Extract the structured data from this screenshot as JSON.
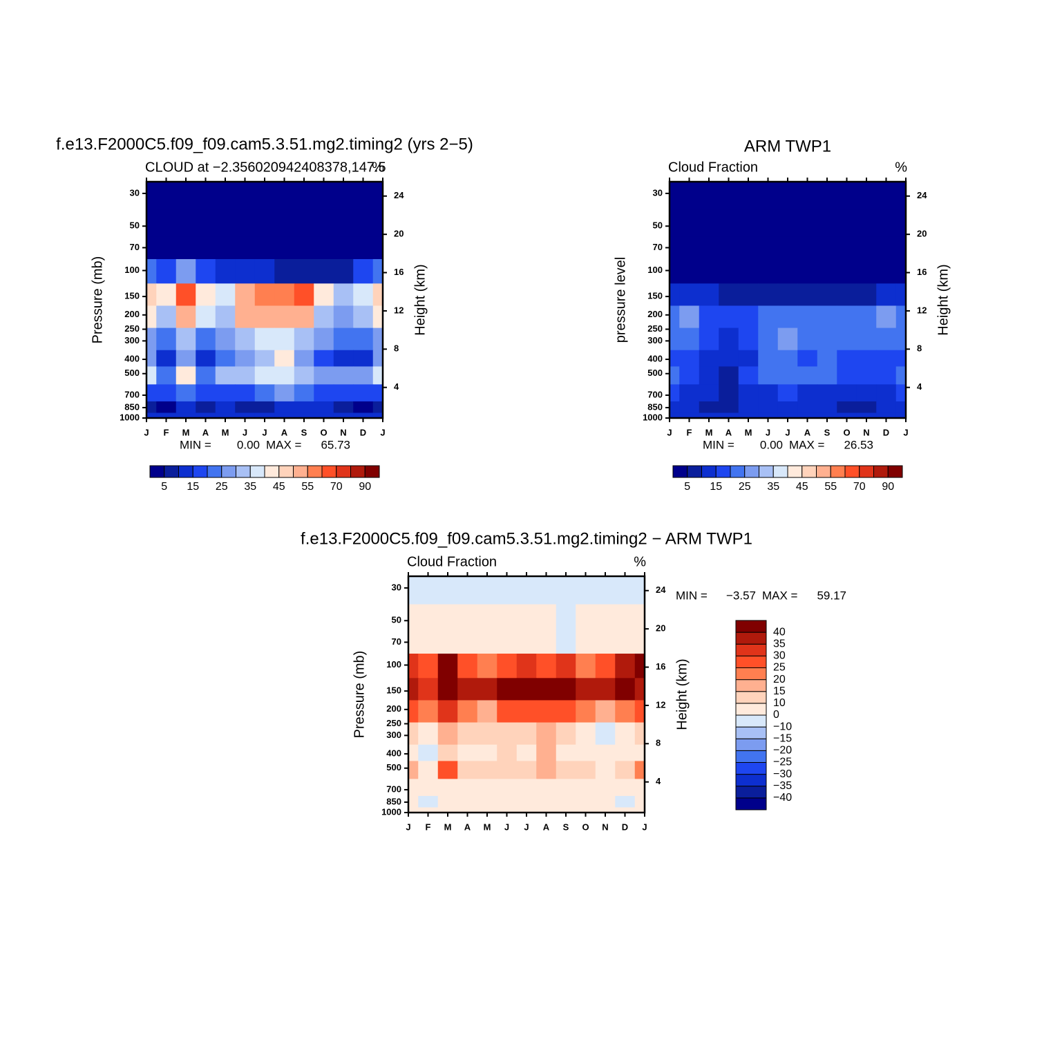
{
  "chart_data": [
    {
      "type": "contour",
      "title": "f.e13.F2000C5.f09_f09.cam5.3.51.mg2.timing2 (yrs 2−5)",
      "left_string": "CLOUD at −2.356020942408378,147.5",
      "right_string": "%",
      "ylabel": "Pressure (mb)",
      "y2label": "Height (km)",
      "categories": [
        "J",
        "F",
        "M",
        "A",
        "M",
        "J",
        "J",
        "A",
        "S",
        "O",
        "N",
        "D",
        "J"
      ],
      "y": [
        30,
        50,
        70,
        100,
        150,
        200,
        300,
        400,
        500,
        700,
        850,
        1000
      ],
      "z": [
        [
          0,
          0,
          0,
          0,
          0,
          0,
          0,
          0,
          0,
          0,
          0,
          0,
          0
        ],
        [
          0,
          0,
          0,
          0,
          0,
          0,
          0,
          0,
          0,
          0,
          0,
          0,
          0
        ],
        [
          2,
          2,
          3,
          2,
          1,
          1,
          1,
          1,
          1,
          1,
          1,
          2,
          2
        ],
        [
          22,
          18,
          28,
          15,
          12,
          12,
          10,
          8,
          6,
          6,
          8,
          15,
          22
        ],
        [
          45,
          40,
          65,
          40,
          35,
          50,
          58,
          55,
          60,
          40,
          32,
          38,
          45
        ],
        [
          40,
          33,
          50,
          35,
          30,
          50,
          52,
          52,
          50,
          30,
          28,
          33,
          40
        ],
        [
          28,
          22,
          32,
          22,
          26,
          32,
          35,
          35,
          32,
          25,
          20,
          22,
          28
        ],
        [
          25,
          10,
          28,
          10,
          22,
          25,
          30,
          40,
          28,
          18,
          12,
          14,
          25
        ],
        [
          38,
          20,
          42,
          22,
          30,
          32,
          35,
          38,
          32,
          28,
          25,
          28,
          38
        ],
        [
          18,
          15,
          20,
          18,
          15,
          18,
          22,
          25,
          22,
          18,
          15,
          15,
          18
        ],
        [
          8,
          4,
          10,
          8,
          10,
          8,
          8,
          10,
          10,
          10,
          8,
          4,
          8
        ],
        [
          10,
          10,
          10,
          10,
          10,
          10,
          10,
          10,
          10,
          10,
          10,
          10,
          10
        ]
      ],
      "ylim": [
        1000,
        25
      ],
      "log_y": true,
      "yticks": [
        30,
        50,
        70,
        100,
        150,
        200,
        250,
        300,
        400,
        500,
        700,
        850,
        1000
      ],
      "y2lim": [
        0.8,
        25.5
      ],
      "y2ticks": [
        4,
        8,
        12,
        16,
        20,
        24
      ],
      "levels": [
        5,
        10,
        15,
        20,
        25,
        30,
        35,
        40,
        45,
        50,
        55,
        60,
        70,
        80,
        90
      ],
      "colorbar_ticks": [
        5,
        15,
        25,
        35,
        45,
        55,
        70,
        90
      ],
      "colorbar": "horizontal",
      "colors": [
        "#00008b",
        "#0a1e9b",
        "#0d2fcf",
        "#1e46f0",
        "#4274f0",
        "#7c9cf0",
        "#a8c0f5",
        "#d8e8fa",
        "#ffeadc",
        "#ffd3bb",
        "#ffb090",
        "#ff7f50",
        "#ff5028",
        "#e0341a",
        "#b01a0c",
        "#800000"
      ],
      "min_label": "MIN =",
      "min": {
        "value": 0,
        "label": "0.00"
      },
      "max_label": "MAX =",
      "max": 65.73
    },
    {
      "type": "contour",
      "title": "ARM TWP1",
      "left_string": "Cloud Fraction",
      "right_string": "%",
      "ylabel": "pressure level",
      "y2label": "Height (km)",
      "categories": [
        "J",
        "F",
        "M",
        "A",
        "M",
        "J",
        "J",
        "A",
        "S",
        "O",
        "N",
        "D",
        "J"
      ],
      "y": [
        30,
        50,
        70,
        100,
        150,
        200,
        300,
        400,
        500,
        700,
        850,
        1000
      ],
      "z": [
        [
          0,
          0,
          0,
          0,
          0,
          0,
          0,
          0,
          0,
          0,
          0,
          0,
          0
        ],
        [
          0,
          0,
          0,
          0,
          0,
          0,
          0,
          0,
          0,
          0,
          0,
          0,
          0
        ],
        [
          0,
          0,
          0,
          0,
          0,
          0,
          0,
          0,
          0,
          0,
          0,
          0,
          0
        ],
        [
          4,
          3,
          3,
          2,
          2,
          2,
          2,
          2,
          2,
          2,
          2,
          3,
          4
        ],
        [
          12,
          10,
          10,
          8,
          8,
          8,
          8,
          8,
          9,
          9,
          9,
          10,
          12
        ],
        [
          22,
          25,
          18,
          15,
          15,
          20,
          24,
          22,
          20,
          20,
          22,
          25,
          22
        ],
        [
          20,
          22,
          18,
          14,
          16,
          22,
          26,
          20,
          22,
          20,
          22,
          24,
          20
        ],
        [
          18,
          16,
          14,
          10,
          14,
          20,
          22,
          18,
          20,
          16,
          18,
          15,
          18
        ],
        [
          20,
          18,
          14,
          8,
          15,
          20,
          22,
          20,
          20,
          18,
          18,
          18,
          20
        ],
        [
          15,
          12,
          10,
          6,
          12,
          14,
          15,
          14,
          12,
          10,
          10,
          12,
          15
        ],
        [
          12,
          10,
          8,
          6,
          10,
          10,
          10,
          12,
          10,
          8,
          8,
          10,
          12
        ],
        [
          10,
          10,
          10,
          10,
          10,
          10,
          10,
          10,
          10,
          10,
          10,
          10,
          10
        ]
      ],
      "ylim": [
        1000,
        25
      ],
      "log_y": true,
      "yticks": [
        30,
        50,
        70,
        100,
        150,
        200,
        250,
        300,
        400,
        500,
        700,
        850,
        1000
      ],
      "y2lim": [
        0.8,
        25.5
      ],
      "y2ticks": [
        4,
        8,
        12,
        16,
        20,
        24
      ],
      "levels": [
        5,
        10,
        15,
        20,
        25,
        30,
        35,
        40,
        45,
        50,
        55,
        60,
        70,
        80,
        90
      ],
      "colorbar_ticks": [
        5,
        15,
        25,
        35,
        45,
        55,
        70,
        90
      ],
      "colorbar": "horizontal",
      "colors": [
        "#00008b",
        "#0a1e9b",
        "#0d2fcf",
        "#1e46f0",
        "#4274f0",
        "#7c9cf0",
        "#a8c0f5",
        "#d8e8fa",
        "#ffeadc",
        "#ffd3bb",
        "#ffb090",
        "#ff7f50",
        "#ff5028",
        "#e0341a",
        "#b01a0c",
        "#800000"
      ],
      "min_label": "MIN =",
      "min": {
        "value": 0,
        "label": "0.00"
      },
      "max_label": "MAX =",
      "max": 26.53
    },
    {
      "type": "contour",
      "title": "f.e13.F2000C5.f09_f09.cam5.3.51.mg2.timing2 − ARM TWP1",
      "left_string": "Cloud Fraction",
      "right_string": "%",
      "ylabel": "Pressure (mb)",
      "y2label": "Height (km)",
      "categories": [
        "J",
        "F",
        "M",
        "A",
        "M",
        "J",
        "J",
        "A",
        "S",
        "O",
        "N",
        "D",
        "J"
      ],
      "y": [
        30,
        50,
        70,
        100,
        150,
        200,
        300,
        400,
        500,
        700,
        850,
        1000
      ],
      "z": [
        [
          -3,
          -3,
          -3,
          -3,
          -3,
          -3,
          -3,
          -3,
          -3,
          -3,
          -3,
          -3,
          -3
        ],
        [
          2,
          2,
          2,
          2,
          2,
          2,
          2,
          2,
          -1,
          2,
          2,
          2,
          2
        ],
        [
          3,
          3,
          3,
          3,
          3,
          3,
          3,
          3,
          -1,
          3,
          3,
          3,
          3
        ],
        [
          30,
          25,
          45,
          25,
          22,
          25,
          30,
          28,
          30,
          22,
          25,
          35,
          40
        ],
        [
          38,
          30,
          50,
          35,
          35,
          45,
          48,
          42,
          48,
          35,
          35,
          40,
          38
        ],
        [
          25,
          22,
          30,
          22,
          18,
          25,
          28,
          25,
          28,
          20,
          18,
          20,
          25
        ],
        [
          12,
          5,
          15,
          10,
          12,
          12,
          10,
          15,
          12,
          8,
          -2,
          5,
          12
        ],
        [
          8,
          -2,
          12,
          4,
          8,
          12,
          5,
          15,
          8,
          5,
          2,
          5,
          8
        ],
        [
          18,
          8,
          25,
          12,
          12,
          12,
          10,
          18,
          12,
          10,
          8,
          12,
          20
        ],
        [
          5,
          5,
          8,
          5,
          5,
          5,
          5,
          5,
          5,
          5,
          5,
          5,
          5
        ],
        [
          2,
          -2,
          2,
          2,
          2,
          3,
          3,
          2,
          2,
          2,
          2,
          -2,
          2
        ],
        [
          2,
          2,
          2,
          2,
          2,
          2,
          2,
          2,
          2,
          2,
          2,
          2,
          2
        ]
      ],
      "ylim": [
        1000,
        25
      ],
      "log_y": true,
      "yticks": [
        30,
        50,
        70,
        100,
        150,
        200,
        250,
        300,
        400,
        500,
        700,
        850,
        1000
      ],
      "y2lim": [
        0.8,
        25.5
      ],
      "y2ticks": [
        4,
        8,
        12,
        16,
        20,
        24
      ],
      "levels": [
        {
          "value": -40,
          "label": "−40"
        },
        {
          "value": -35,
          "label": "−35"
        },
        {
          "value": -30,
          "label": "−30"
        },
        {
          "value": -25,
          "label": "−25"
        },
        {
          "value": -20,
          "label": "−20"
        },
        {
          "value": -15,
          "label": "−15"
        },
        {
          "value": -10,
          "label": "−10"
        },
        0,
        10,
        15,
        20,
        25,
        30,
        35,
        40
      ],
      "colorbar": "vertical",
      "colors": [
        "#00008b",
        "#0a1e9b",
        "#0d2fcf",
        "#1e46f0",
        "#4274f0",
        "#7c9cf0",
        "#a8c0f5",
        "#d8e8fa",
        "#ffeadc",
        "#ffd3bb",
        "#ffb090",
        "#ff7f50",
        "#ff5028",
        "#e0341a",
        "#b01a0c",
        "#800000"
      ],
      "min_label": "MIN =",
      "min": {
        "value": -3.57,
        "label": "−3.57"
      },
      "max_label": "MAX =",
      "max": 59.17
    }
  ]
}
